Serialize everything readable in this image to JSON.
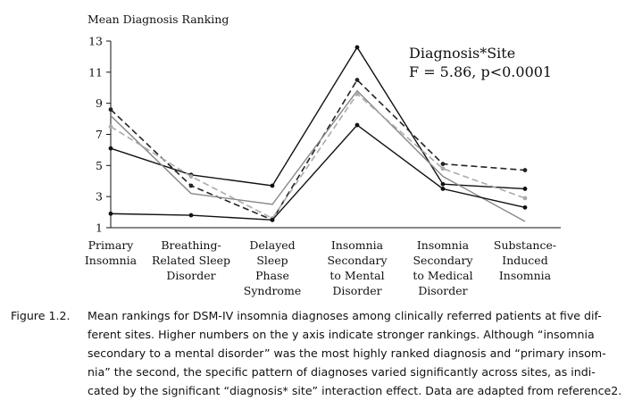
{
  "chart_data": {
    "type": "line",
    "ylabel": "Mean Diagnosis Ranking",
    "ylim": [
      1,
      13
    ],
    "yticks": [
      1,
      3,
      5,
      7,
      9,
      11,
      13
    ],
    "categories": [
      [
        "Primary",
        "Insomnia"
      ],
      [
        "Breathing-",
        "Related Sleep",
        "Disorder"
      ],
      [
        "Delayed",
        "Sleep",
        "Phase",
        "Syndrome"
      ],
      [
        "Insomnia",
        "Secondary",
        "to Mental",
        "Disorder"
      ],
      [
        "Insomnia",
        "Secondary",
        "to Medical",
        "Disorder"
      ],
      [
        "Substance-",
        "Induced",
        "Insomnia"
      ]
    ],
    "annotation": [
      "Diagnosis*Site",
      "F = 5.86, p<0.0001"
    ],
    "grid": false,
    "series": [
      {
        "values": [
          6.1,
          4.4,
          3.7,
          12.6,
          3.8,
          3.5
        ],
        "color": "#111111",
        "dash": "solid",
        "marker": "circle"
      },
      {
        "values": [
          8.6,
          3.7,
          1.5,
          10.5,
          5.1,
          4.7
        ],
        "color": "#222222",
        "dash": "dashed",
        "marker": "circle"
      },
      {
        "values": [
          8.2,
          3.2,
          2.5,
          9.8,
          4.3,
          1.4
        ],
        "color": "#888888",
        "dash": "solid",
        "marker": "none"
      },
      {
        "values": [
          7.5,
          4.3,
          1.6,
          9.6,
          4.8,
          2.9
        ],
        "color": "#aaaaaa",
        "dash": "dashed",
        "marker": "circle"
      },
      {
        "values": [
          1.9,
          1.8,
          1.5,
          7.6,
          3.5,
          2.3
        ],
        "color": "#111111",
        "dash": "solid",
        "marker": "circle"
      }
    ]
  },
  "caption": {
    "label": "Figure 1.2.",
    "lines": [
      "Mean rankings for DSM-IV insomnia diagnoses among clinically referred patients at five dif-",
      "ferent sites. Higher numbers on the y axis indicate stronger rankings. Although “insomnia",
      "secondary to a mental disorder” was the most highly ranked diagnosis and “primary insom-",
      "nia” the second, the specific pattern of diagnoses varied significantly across sites, as indi-",
      "cated by the significant “diagnosis* site” interaction effect. Data are adapted from reference2."
    ]
  }
}
